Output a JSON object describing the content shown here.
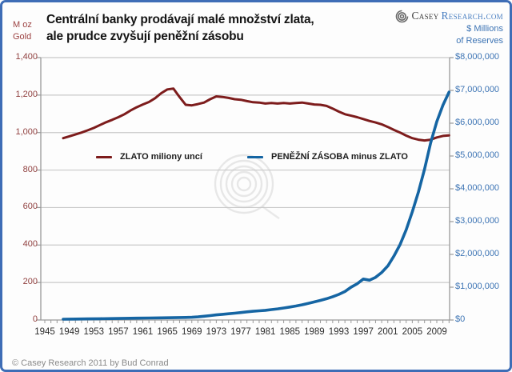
{
  "header": {
    "title_line1": "Centrální banky prodávají malé množství zlata,",
    "title_line2": "ale prudce zvyšují peněžní zásobu",
    "left_unit": {
      "line1": "M oz",
      "line2": "Gold"
    },
    "right_unit": {
      "line1": "$ Millions",
      "line2": "of Reserves"
    },
    "logo": {
      "icon": "spiral-logo-icon",
      "text_primary": "Casey",
      "text_secondary": "Research.com"
    }
  },
  "legend": {
    "items": [
      {
        "label": "ZLATO miliony uncí",
        "color": "#7d1c1c"
      },
      {
        "label": "PENĚŽNÍ ZÁSOBA minus ZLATO",
        "color": "#1565a3"
      }
    ]
  },
  "footer": {
    "copyright": "© Casey Research 2011 by Bud Conrad"
  },
  "colors": {
    "border": "#3e6db6",
    "gold_line": "#7d1c1c",
    "money_line": "#1565a3",
    "left_axis_text": "#90403f",
    "right_axis_text": "#3d74b4",
    "gridline": "#c9c9c9",
    "axis_line": "#9a9a9a",
    "watermark": "#d6d6d6"
  },
  "chart_data": {
    "type": "line",
    "title": "Centrální banky prodávají malé množství zlata, ale prudce zvyšují peněžní zásobu",
    "grid": "horizontal",
    "legend_position": "inside-top",
    "left_axis": {
      "label": "M oz Gold",
      "range": [
        0,
        1400
      ],
      "tick_labels": [
        "1,400",
        "1,200",
        "1,000",
        "800",
        "600",
        "400",
        "200",
        "0"
      ]
    },
    "right_axis": {
      "label": "$ Millions of Reserves",
      "range": [
        0,
        8000000
      ],
      "tick_labels": [
        "$8,000,000",
        "$7,000,000",
        "$6,000,000",
        "$5,000,000",
        "$4,000,000",
        "$3,000,000",
        "$2,000,000",
        "$1,000,000",
        "$0"
      ]
    },
    "x_axis": {
      "range": [
        1944,
        2011
      ],
      "minor_tick_interval": 1,
      "tick_labels": [
        "1945",
        "1949",
        "1953",
        "1957",
        "1961",
        "1965",
        "1969",
        "1973",
        "1977",
        "1981",
        "1985",
        "1989",
        "1993",
        "1997",
        "2001",
        "2005",
        "2009"
      ]
    },
    "series": [
      {
        "name": "ZLATO miliony uncí",
        "axis": "left",
        "color": "#7d1c1c",
        "width": 3,
        "points": [
          [
            1948,
            970
          ],
          [
            1949,
            980
          ],
          [
            1950,
            990
          ],
          [
            1951,
            1000
          ],
          [
            1952,
            1012
          ],
          [
            1953,
            1025
          ],
          [
            1954,
            1040
          ],
          [
            1955,
            1055
          ],
          [
            1956,
            1068
          ],
          [
            1957,
            1082
          ],
          [
            1958,
            1098
          ],
          [
            1959,
            1118
          ],
          [
            1960,
            1135
          ],
          [
            1961,
            1150
          ],
          [
            1962,
            1163
          ],
          [
            1963,
            1183
          ],
          [
            1964,
            1210
          ],
          [
            1965,
            1230
          ],
          [
            1966,
            1235
          ],
          [
            1967,
            1190
          ],
          [
            1968,
            1148
          ],
          [
            1969,
            1145
          ],
          [
            1970,
            1152
          ],
          [
            1971,
            1160
          ],
          [
            1972,
            1178
          ],
          [
            1973,
            1193
          ],
          [
            1974,
            1190
          ],
          [
            1975,
            1185
          ],
          [
            1976,
            1178
          ],
          [
            1977,
            1175
          ],
          [
            1978,
            1168
          ],
          [
            1979,
            1162
          ],
          [
            1980,
            1160
          ],
          [
            1981,
            1155
          ],
          [
            1982,
            1158
          ],
          [
            1983,
            1155
          ],
          [
            1984,
            1158
          ],
          [
            1985,
            1155
          ],
          [
            1986,
            1158
          ],
          [
            1987,
            1160
          ],
          [
            1988,
            1155
          ],
          [
            1989,
            1150
          ],
          [
            1990,
            1148
          ],
          [
            1991,
            1142
          ],
          [
            1992,
            1128
          ],
          [
            1993,
            1112
          ],
          [
            1994,
            1098
          ],
          [
            1995,
            1090
          ],
          [
            1996,
            1082
          ],
          [
            1997,
            1072
          ],
          [
            1998,
            1062
          ],
          [
            1999,
            1054
          ],
          [
            2000,
            1044
          ],
          [
            2001,
            1030
          ],
          [
            2002,
            1014
          ],
          [
            2003,
            1000
          ],
          [
            2004,
            984
          ],
          [
            2005,
            970
          ],
          [
            2006,
            962
          ],
          [
            2007,
            958
          ],
          [
            2008,
            962
          ],
          [
            2009,
            974
          ],
          [
            2010,
            982
          ],
          [
            2011,
            985
          ]
        ]
      },
      {
        "name": "PENĚŽNÍ ZÁSOBA minus ZLATO",
        "axis": "right",
        "color": "#1565a3",
        "width": 3.6,
        "points": [
          [
            1948,
            25000
          ],
          [
            1950,
            30000
          ],
          [
            1952,
            34000
          ],
          [
            1954,
            38000
          ],
          [
            1956,
            43000
          ],
          [
            1958,
            50000
          ],
          [
            1960,
            56000
          ],
          [
            1962,
            61000
          ],
          [
            1964,
            65000
          ],
          [
            1966,
            71000
          ],
          [
            1968,
            77000
          ],
          [
            1969,
            84000
          ],
          [
            1970,
            95000
          ],
          [
            1971,
            115000
          ],
          [
            1972,
            135000
          ],
          [
            1973,
            155000
          ],
          [
            1974,
            172000
          ],
          [
            1975,
            190000
          ],
          [
            1976,
            208000
          ],
          [
            1977,
            227000
          ],
          [
            1978,
            248000
          ],
          [
            1979,
            265000
          ],
          [
            1980,
            280000
          ],
          [
            1981,
            295000
          ],
          [
            1982,
            316000
          ],
          [
            1983,
            340000
          ],
          [
            1984,
            366000
          ],
          [
            1985,
            395000
          ],
          [
            1986,
            428000
          ],
          [
            1987,
            463000
          ],
          [
            1988,
            505000
          ],
          [
            1989,
            550000
          ],
          [
            1990,
            598000
          ],
          [
            1991,
            648000
          ],
          [
            1992,
            710000
          ],
          [
            1993,
            780000
          ],
          [
            1994,
            868000
          ],
          [
            1995,
            1000000
          ],
          [
            1996,
            1105000
          ],
          [
            1997,
            1250000
          ],
          [
            1998,
            1215000
          ],
          [
            1999,
            1300000
          ],
          [
            2000,
            1450000
          ],
          [
            2001,
            1650000
          ],
          [
            2002,
            1950000
          ],
          [
            2003,
            2300000
          ],
          [
            2004,
            2750000
          ],
          [
            2005,
            3300000
          ],
          [
            2006,
            3900000
          ],
          [
            2007,
            4600000
          ],
          [
            2008,
            5400000
          ],
          [
            2009,
            6050000
          ],
          [
            2010,
            6550000
          ],
          [
            2011,
            6950000
          ]
        ]
      }
    ]
  }
}
